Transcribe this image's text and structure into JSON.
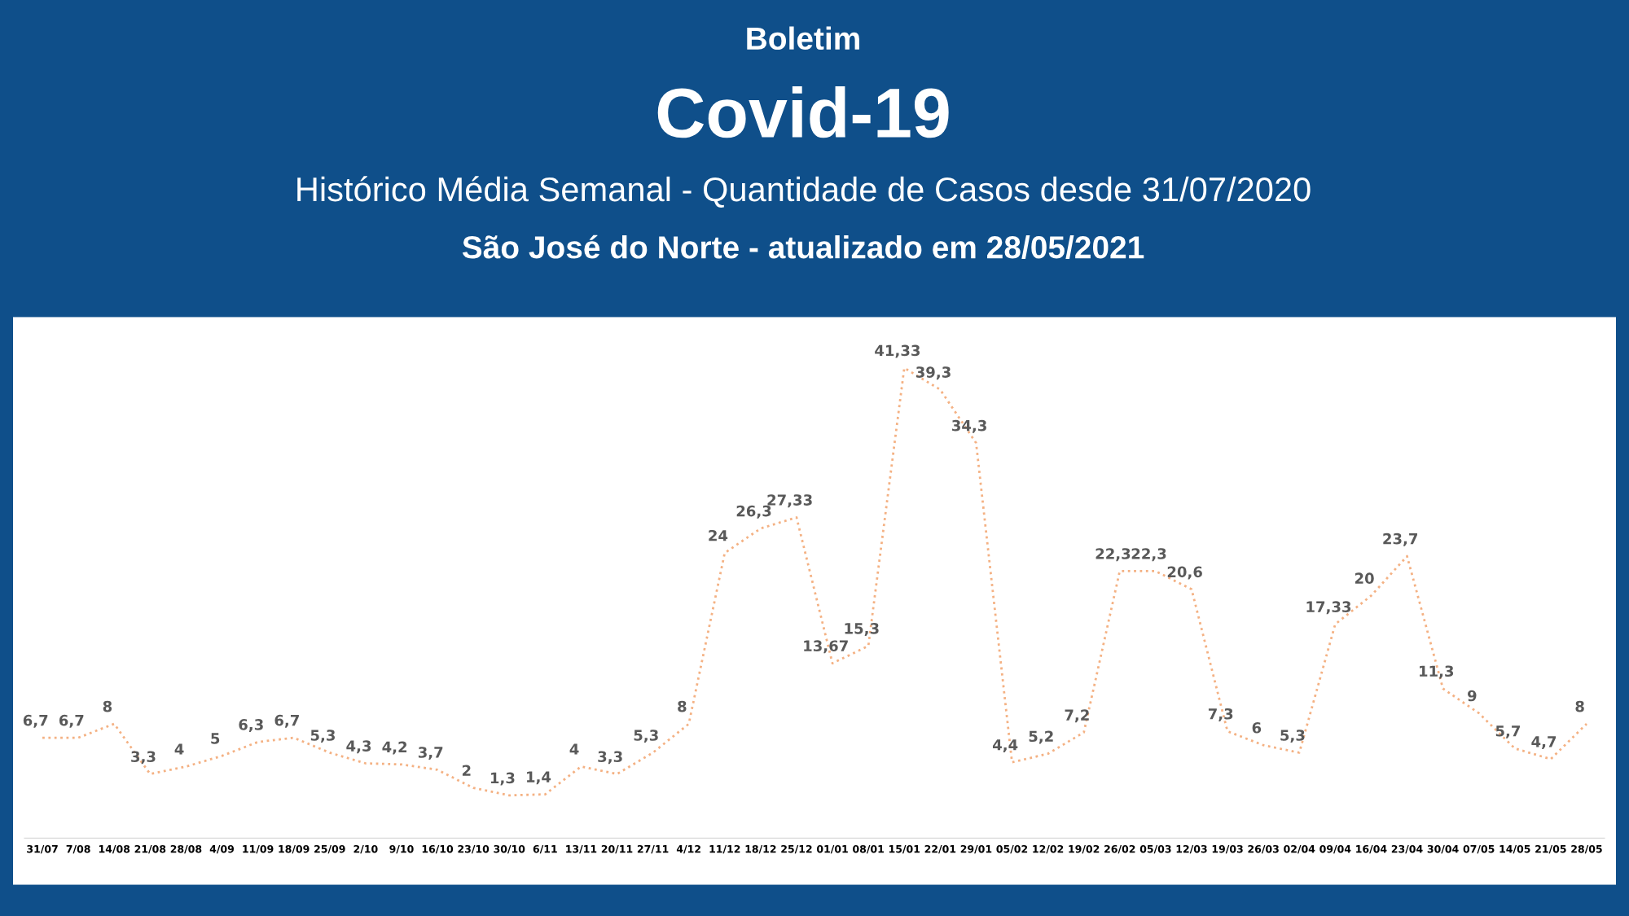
{
  "chart_data": {
    "type": "line",
    "title": "Covid-19",
    "subtitle": "Histórico Média Semanal - Quantidade de Casos desde 31/07/2020",
    "annotations": [
      "Boletim",
      "São José do Norte - atualizado em 28/05/2021"
    ],
    "categories": [
      "31/07",
      "7/08",
      "14/08",
      "21/08",
      "28/08",
      "4/09",
      "11/09",
      "18/09",
      "25/09",
      "2/10",
      "9/10",
      "16/10",
      "23/10",
      "30/10",
      "6/11",
      "13/11",
      "20/11",
      "27/11",
      "4/12",
      "11/12",
      "18/12",
      "25/12",
      "01/01",
      "08/01",
      "15/01",
      "22/01",
      "29/01",
      "05/02",
      "12/02",
      "19/02",
      "26/02",
      "05/03",
      "12/03",
      "19/03",
      "26/03",
      "02/04",
      "09/04",
      "16/04",
      "23/04",
      "30/04",
      "07/05",
      "14/05",
      "21/05",
      "28/05"
    ],
    "series": [
      {
        "color": "#f4b183",
        "values": [
          6.7,
          6.7,
          8,
          3.3,
          4,
          5,
          6.3,
          6.7,
          5.3,
          4.3,
          4.2,
          3.7,
          2,
          1.3,
          1.4,
          4,
          3.3,
          5.3,
          8,
          24,
          26.3,
          27.33,
          13.67,
          15.3,
          41.33,
          39.3,
          34.3,
          4.4,
          5.2,
          7.2,
          22.3,
          22.3,
          20.6,
          7.3,
          6,
          5.3,
          17.33,
          20,
          23.7,
          11.3,
          9,
          5.7,
          4.7,
          8
        ],
        "value_labels": [
          "6,7",
          "6,7",
          "8",
          "3,3",
          "4",
          "5",
          "6,3",
          "6,7",
          "5,3",
          "4,3",
          "4,2",
          "3,7",
          "2",
          "1,3",
          "1,4",
          "4",
          "3,3",
          "5,3",
          "8",
          "24",
          "26,3",
          "27,33",
          "13,67",
          "15,3",
          "41,33",
          "39,3",
          "34,3",
          "4,4",
          "5,2",
          "7,2",
          "22,3",
          "22,3",
          "20,6",
          "7,3",
          "6",
          "5,3",
          "17,33",
          "20",
          "23,7",
          "11,3",
          "9",
          "5,7",
          "4,7",
          "8"
        ]
      }
    ],
    "tick_labels": "x",
    "line_style": "dotted",
    "marker": "none",
    "grid": false,
    "legend": false
  }
}
